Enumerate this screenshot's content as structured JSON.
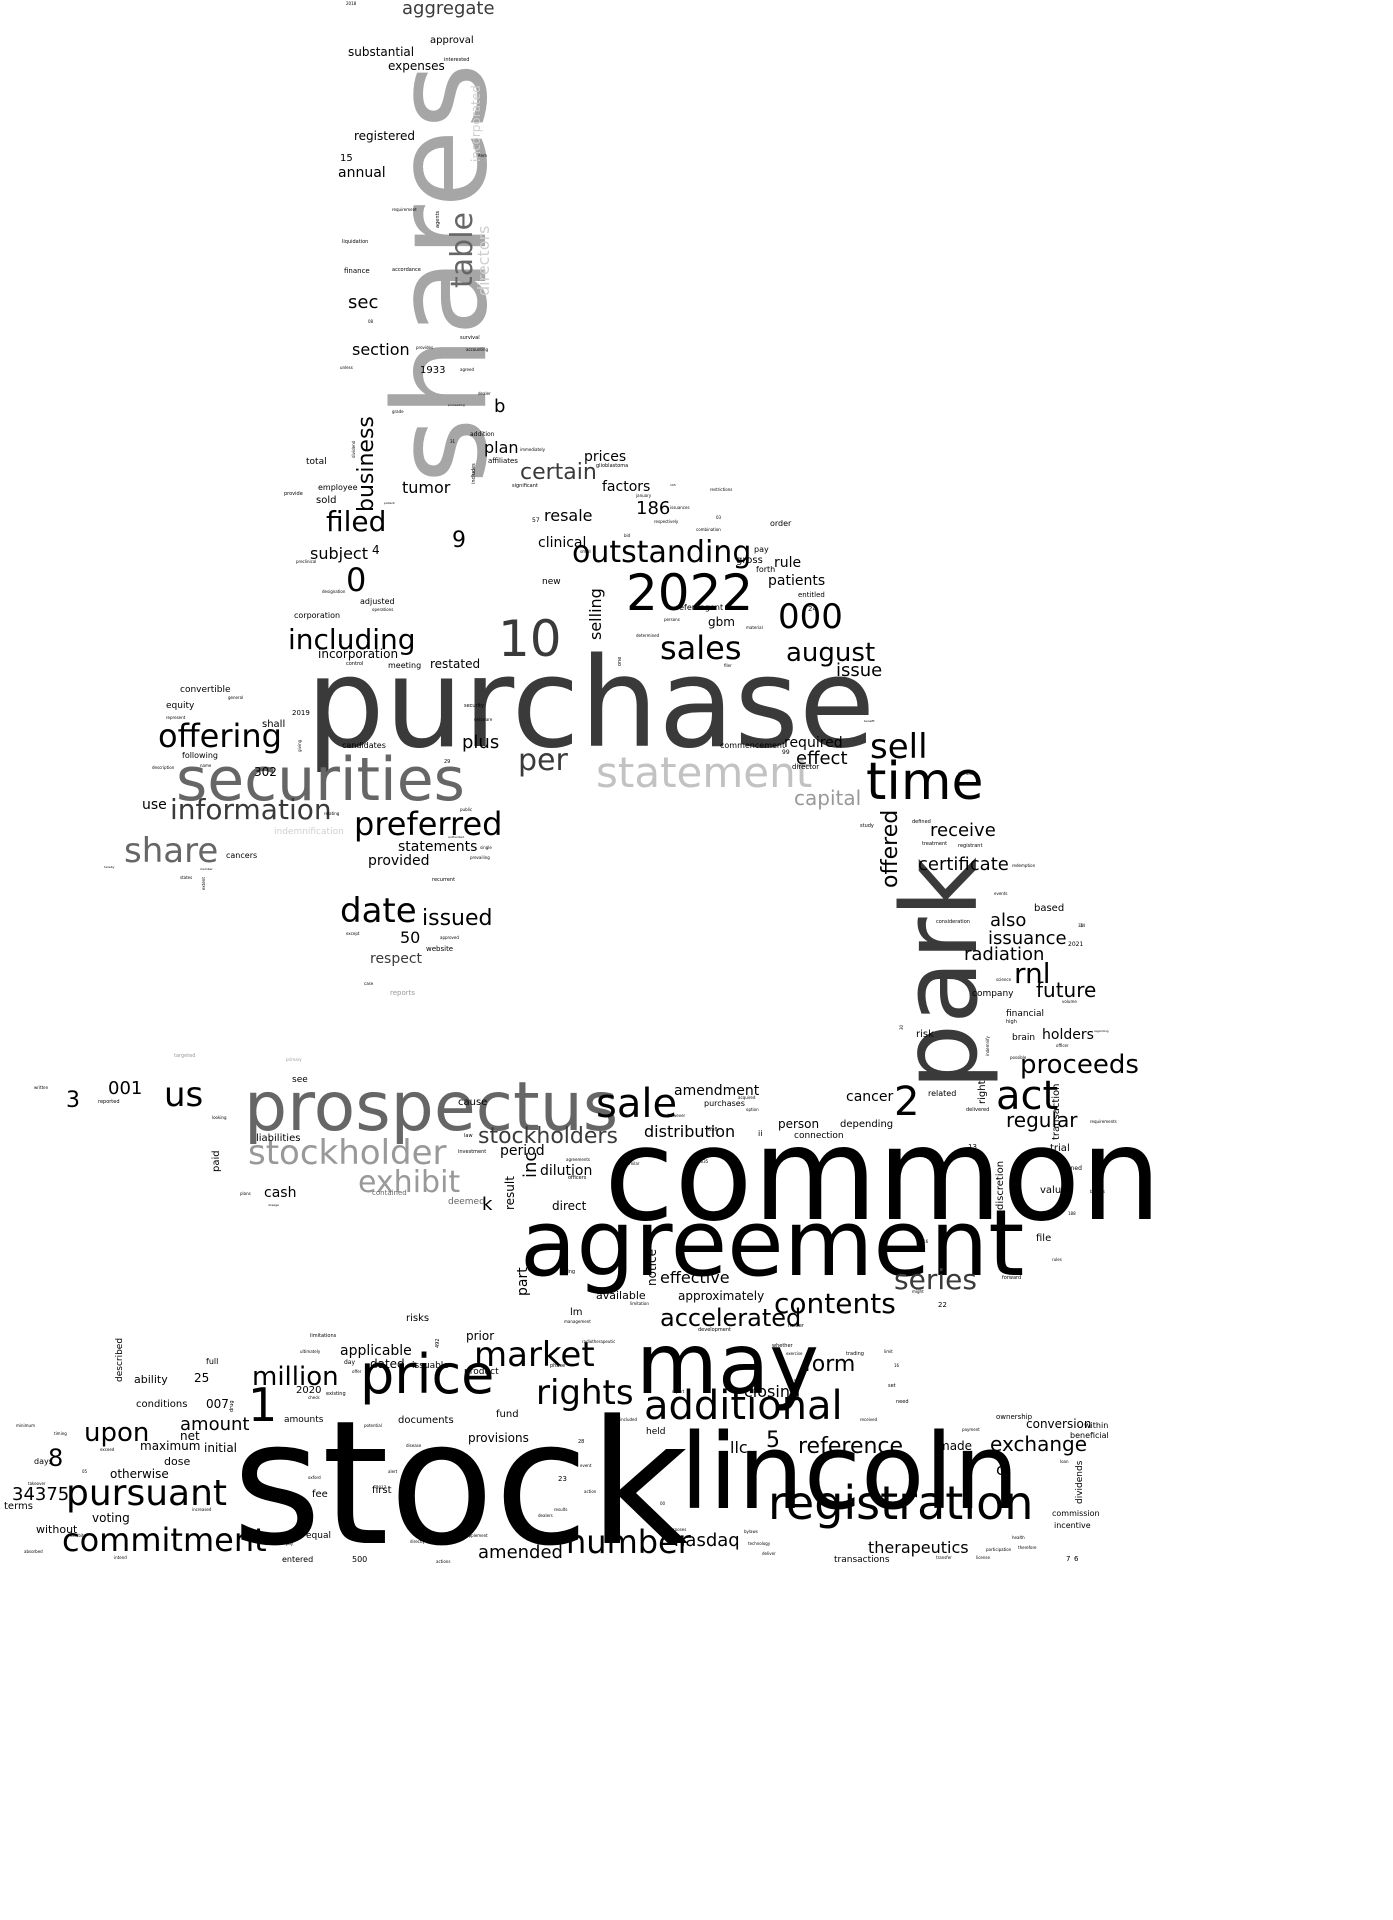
{
  "palette": {
    "black": "#000000",
    "dark": "#3a3a3a",
    "mid": "#666666",
    "gray": "#8c8c8c",
    "light": "#b4b4b4",
    "pale": "#cfcfcf"
  },
  "words": {
    "stock": "stock",
    "common": "common",
    "purchase": "purchase",
    "shares": "shares",
    "agreement": "agreement",
    "lincoln": "lincoln",
    "park": "park",
    "prospectus": "prospectus",
    "may": "may",
    "securities": "securities",
    "registration": "registration",
    "price": "price",
    "time": "time",
    "additional": "additional",
    "statement": "statement",
    "n2022": "2022",
    "n10": "10",
    "sales": "sales",
    "sale": "sale",
    "market": "market",
    "rights": "rights",
    "stockholder": "stockholder",
    "pursuant": "pursuant",
    "commitment": "commitment",
    "number": "number",
    "preferred": "preferred",
    "offering": "offering",
    "share": "share",
    "date": "date",
    "act": "act",
    "sell": "sell",
    "outstanding": "outstanding",
    "including": "including",
    "information": "information",
    "table": "table",
    "exhibit": "exhibit",
    "proceeds": "proceeds",
    "contents": "contents",
    "series": "series",
    "accelerated": "accelerated",
    "million": "million",
    "august": "august",
    "n000": "000",
    "filed": "filed",
    "stockholders": "stockholders",
    "us": "us",
    "n2": "2",
    "n1": "1",
    "per": "per",
    "rnl": "rnl",
    "offered": "offered",
    "business": "business",
    "certain": "certain",
    "future": "future",
    "issued": "issued",
    "reference": "reference",
    "upon": "upon",
    "exchange": "exchange",
    "form": "form",
    "certificate": "certificate",
    "receive": "receive",
    "directors": "directors",
    "incorporated": "incorporated",
    "capital": "capital",
    "amendment": "amendment",
    "distribution": "distribution",
    "regular": "regular",
    "therapeutics": "therapeutics",
    "nasdaq": "nasdaq",
    "amended": "amended",
    "closing": "closing",
    "effective": "effective",
    "provisions": "provisions",
    "aggregate": "aggregate",
    "section": "section",
    "sec": "sec",
    "tumor": "tumor",
    "plus": "plus",
    "issuance": "issuance",
    "radiation": "radiation",
    "holders": "holders",
    "also": "also",
    "cancer": "cancer",
    "n0": "0",
    "n9": "9",
    "n186": "186",
    "n8": "8",
    "n5": "5",
    "n3": "3",
    "n001": "001",
    "n34375": "34375",
    "respect": "respect",
    "n50": "50",
    "resale": "resale",
    "clinical": "clinical",
    "selling": "selling",
    "subject": "subject",
    "amount": "amount",
    "applicable": "applicable",
    "dated": "dated",
    "prior": "prior",
    "dilution": "dilution",
    "inc": "inc",
    "period": "period",
    "direct": "direct",
    "result": "result",
    "part": "part",
    "notice": "notice",
    "approximately": "approximately",
    "available": "available",
    "llc": "llc",
    "made": "made",
    "c": "c",
    "conversion": "conversion",
    "k": "k",
    "cash": "cash",
    "paid": "paid",
    "liabilities": "liabilities",
    "see": "see",
    "cause": "cause",
    "effect": "effect",
    "required": "required",
    "issue": "issue",
    "patients": "patients",
    "rule": "rule",
    "factors": "factors",
    "prices": "prices",
    "plan": "plan",
    "b": "b",
    "registered": "registered",
    "annual": "annual",
    "expenses": "expenses",
    "substantial": "substantial",
    "approval": "approval",
    "restated": "restated",
    "incorporation": "incorporation",
    "provided": "provided",
    "statements": "statements",
    "use": "use",
    "n302": "302",
    "n4": "4",
    "n007": "007",
    "n25": "25",
    "ability": "ability",
    "conditions": "conditions",
    "maximum": "maximum",
    "net": "net",
    "initial": "initial",
    "otherwise": "otherwise",
    "dose": "dose",
    "voting": "voting",
    "without": "without",
    "fee": "fee",
    "first": "first",
    "equal": "equal",
    "fund": "fund",
    "documents": "documents",
    "amounts": "amounts",
    "n2020": "2020",
    "product": "product",
    "issuable": "issuable",
    "held": "held",
    "gbm": "gbm",
    "n1933": "1933",
    "n15": "15",
    "risks": "risks",
    "lm": "lm",
    "depending": "depending",
    "person": "person",
    "connection": "connection",
    "trial": "trial",
    "value": "value",
    "file": "file",
    "discretion": "discretion",
    "transaction": "transaction",
    "based": "based",
    "company": "company",
    "financial": "financial",
    "brain": "brain",
    "risk": "risk",
    "purchases": "purchases",
    "related": "related",
    "right": "right",
    "commencement": "commencement",
    "sold": "sold",
    "total": "total",
    "employee": "employee",
    "equity": "equity",
    "convertible": "convertible",
    "shall": "shall",
    "candidates": "candidates",
    "following": "following",
    "cancers": "cancers",
    "meeting": "meeting",
    "corporation": "corporation",
    "adjusted": "adjusted",
    "entered": "entered",
    "n500": "500",
    "transactions": "transactions",
    "dividends": "dividends",
    "beneficial": "beneficial",
    "commission": "commission",
    "incentive": "incentive",
    "ownership": "ownership",
    "within": "within",
    "days": "days",
    "terms": "terms",
    "described": "described",
    "full": "full",
    "new": "new",
    "pay": "pay",
    "gross": "gross",
    "forth": "forth",
    "entitled": "entitled",
    "order": "order",
    "refer": "refer",
    "agent": "agent",
    "n24": "24",
    "n99": "99",
    "director": "director",
    "website": "website",
    "reports": "reports",
    "deemed": "deemed",
    "contained": "contained",
    "indemnification": "indemnification",
    "interested": "interested",
    "finance": "finance",
    "accordance": "accordance",
    "liquidation": "liquidation",
    "requirement": "requirement",
    "agents": "agents",
    "survival": "survival",
    "accounting": "accounting",
    "agreed": "agreed",
    "dealer": "dealer",
    "addition": "addition",
    "affiliates": "affiliates",
    "includes": "includes",
    "immediately": "immediately",
    "significant": "significant",
    "glioblastoma": "glioblastoma",
    "n2019": "2019",
    "security": "security",
    "delaware": "delaware",
    "n29": "29",
    "n57": "57",
    "n698": "698",
    "n13": "13",
    "n22": "22",
    "n2021": "2021",
    "n34": "34",
    "targeted": "targeted",
    "primary": "primary",
    "investment": "investment",
    "law": "law",
    "officers": "officers",
    "ii": "ii",
    "holder": "holder",
    "development": "development",
    "limitations": "limitations",
    "day": "day",
    "existing": "existing",
    "n492": "492",
    "n23": "23",
    "n28": "28",
    "owned": "owned",
    "high": "high",
    "delivered": "delivered",
    "listing": "listing",
    "consideration": "consideration",
    "events": "events",
    "defined": "defined",
    "treatment": "treatment",
    "registrant": "registrant",
    "study": "study",
    "recurrent": "recurrent",
    "public": "public",
    "approved": "approved",
    "case": "case",
    "except": "except",
    "reported": "reported",
    "looking": "looking",
    "plans": "plans",
    "n2015": "2015",
    "n2016": "2016",
    "n2017": "2017",
    "trading": "trading",
    "limit": "limit",
    "need": "need",
    "set": "set",
    "received": "received",
    "exercise": "exercise",
    "whether": "whether",
    "technology": "technology",
    "bylaws": "bylaws",
    "power": "power",
    "results": "results",
    "action": "action",
    "event": "event",
    "supplement": "supplement",
    "purposes": "purposes",
    "directly": "directly",
    "oxford": "oxford",
    "july": "july",
    "exhibits": "exhibits",
    "takeover": "takeover",
    "timing": "timing",
    "minimum": "minimum",
    "exceed": "exceed",
    "increased": "increased",
    "health": "health",
    "loan": "loan",
    "absorbed": "absorbed",
    "intend": "intend",
    "complete": "complete",
    "report": "report",
    "included": "included",
    "potential": "potential",
    "disease": "disease",
    "drug": "drug",
    "option": "option",
    "acquired": "acquired",
    "however": "however",
    "combination": "combination",
    "respectively": "respectively",
    "issuances": "issuances",
    "restrictions": "restrictions",
    "january": "january",
    "bid": "bid",
    "small": "small",
    "control": "control",
    "operations": "operations",
    "designation": "designation",
    "preclinical": "preclinical",
    "provide": "provide",
    "unless": "unless",
    "provides": "provides",
    "grade": "grade",
    "item": "item",
    "proceeding": "proceeding",
    "patient": "patient",
    "determined": "determined",
    "persons": "persons",
    "material": "material",
    "filer": "filer",
    "one": "one",
    "months": "months",
    "benefit": "benefit",
    "cap": "cap",
    "n24b": "24",
    "n05": "05",
    "n00": "00",
    "n31": "31",
    "n08": "08",
    "n03": "03",
    "n105": "105",
    "n14": "14",
    "n16": "16",
    "n30": "30",
    "n188": "188",
    "n5635": "5635",
    "n7": "7",
    "n6": "6",
    "n2018": "2018",
    "written": "written",
    "redemption": "redemption",
    "payment": "payment",
    "requirements": "requirements",
    "participation": "participation",
    "therefore": "therefore",
    "license": "license",
    "transfer": "transfer",
    "actions": "actions",
    "volume": "volume",
    "officer": "officer",
    "possible": "possible",
    "science": "science",
    "indemnify": "indemnify",
    "rules": "rules",
    "forward": "forward",
    "brokers": "brokers",
    "applicable2": "applicable",
    "regarding": "regarding",
    "limitation": "limitation",
    "might": "might",
    "management": "management",
    "radiotherapeutic": "radiotherapeutic",
    "deliver": "deliver",
    "dealers": "dealers",
    "agreements": "agreements",
    "similar": "similar",
    "relating": "relating",
    "name": "name",
    "description": "description",
    "represent": "represent",
    "general": "general",
    "giving": "giving",
    "prevailing": "prevailing",
    "single": "single",
    "authorized": "authorized",
    "extent": "extent",
    "member": "member",
    "states": "states",
    "hereby": "hereby",
    "dividend": "dividend",
    "dosage": "dosage",
    "check": "check",
    "offer": "offer",
    "phase": "phase",
    "alert": "alert",
    "ultimately": "ultimately"
  }
}
